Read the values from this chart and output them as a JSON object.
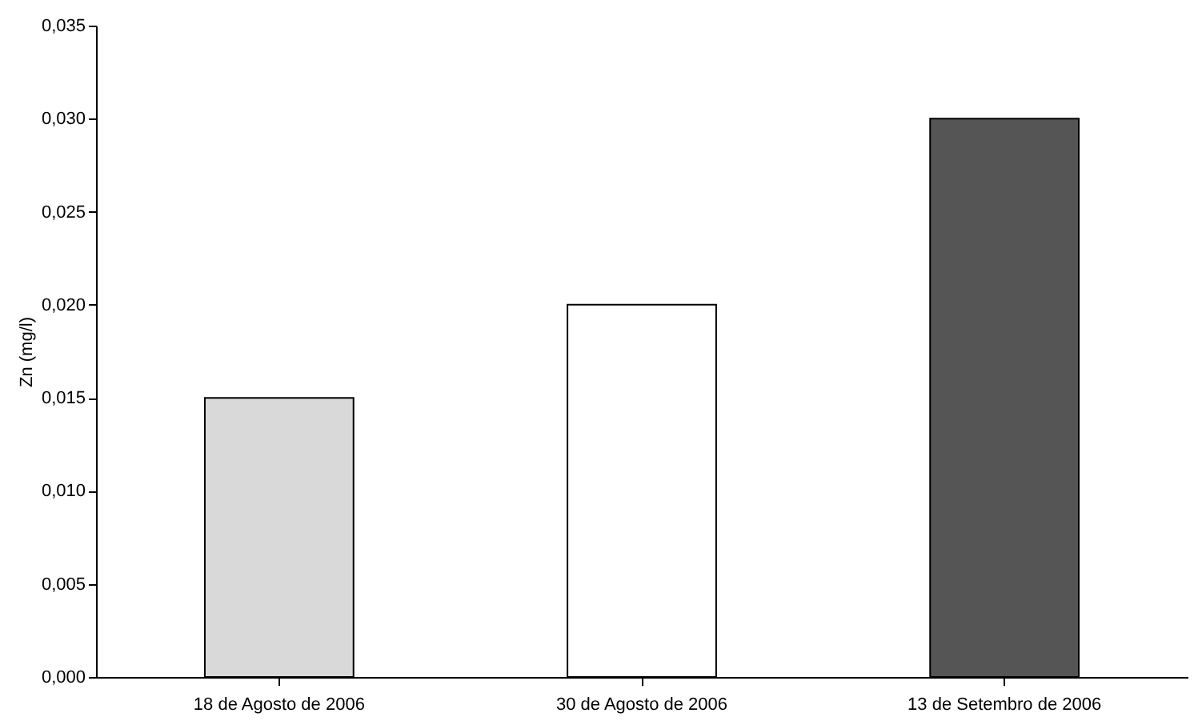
{
  "chart_data": {
    "type": "bar",
    "ylabel": "Zn (mg/l)",
    "categories": [
      "18 de Agosto de 2006",
      "30 de Agosto de 2006",
      "13 de Setembro de 2006"
    ],
    "values": [
      0.015,
      0.02,
      0.03
    ],
    "colors": [
      "#d9d9d9",
      "#ffffff",
      "#555555"
    ],
    "ylim": [
      0,
      0.035
    ],
    "yticks": [
      {
        "value": 0,
        "label": "0,000"
      },
      {
        "value": 0.005,
        "label": "0,005"
      },
      {
        "value": 0.01,
        "label": "0,010"
      },
      {
        "value": 0.015,
        "label": "0,015"
      },
      {
        "value": 0.02,
        "label": "0,020"
      },
      {
        "value": 0.025,
        "label": "0,025"
      },
      {
        "value": 0.03,
        "label": "0,030"
      },
      {
        "value": 0.035,
        "label": "0,035"
      }
    ],
    "grid": false,
    "legend": false
  }
}
